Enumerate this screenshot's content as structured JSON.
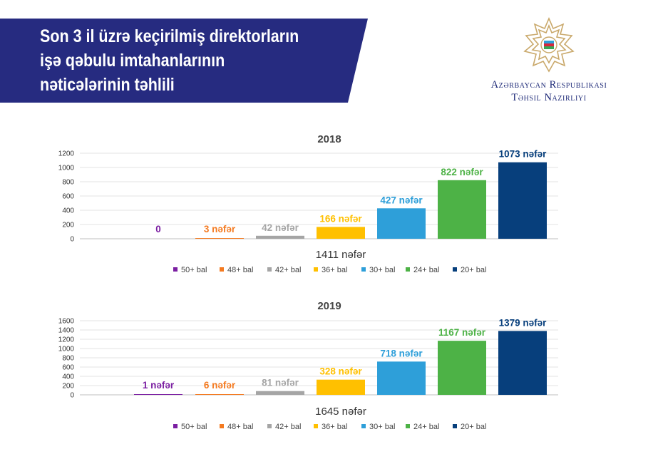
{
  "header": {
    "title_lines": [
      "Son 3 il üzrə keçirilmiş direktorların",
      "işə qəbulu imtahanlarının",
      "nəticələrinin təhlili"
    ],
    "ministry_lines": [
      "Azərbaycan Respublikası",
      "Təhsil Nazirliyi"
    ],
    "banner_color": "#262b80"
  },
  "legend": [
    "50+ bal",
    "48+ bal",
    "42+ bal",
    "36+ bal",
    "30+ bal",
    "24+ bal",
    "20+ bal"
  ],
  "series_colors": [
    "#7b1fa2",
    "#f47a20",
    "#a5a5a5",
    "#ffc000",
    "#2e9fd9",
    "#4db246",
    "#073f7c"
  ],
  "chart_data": [
    {
      "type": "bar",
      "title": "2018",
      "categories": [
        "50+ bal",
        "48+ bal",
        "42+ bal",
        "36+ bal",
        "30+ bal",
        "24+ bal",
        "20+ bal"
      ],
      "values": [
        0,
        3,
        42,
        166,
        427,
        822,
        1073
      ],
      "data_labels": [
        "0",
        "3 nəfər",
        "42 nəfər",
        "166 nəfər",
        "427 nəfər",
        "822 nəfər",
        "1073 nəfər"
      ],
      "ylim": [
        0,
        1200
      ],
      "yticks": [
        0,
        200,
        400,
        600,
        800,
        1000,
        1200
      ],
      "total_label": "1411 nəfər",
      "grid": true,
      "legend_position": "bottom"
    },
    {
      "type": "bar",
      "title": "2019",
      "categories": [
        "50+ bal",
        "48+ bal",
        "42+ bal",
        "36+ bal",
        "30+ bal",
        "24+ bal",
        "20+ bal"
      ],
      "values": [
        1,
        6,
        81,
        328,
        718,
        1167,
        1379
      ],
      "data_labels": [
        "1 nəfər",
        "6 nəfər",
        "81 nəfər",
        "328 nəfər",
        "718 nəfər",
        "1167 nəfər",
        "1379 nəfər"
      ],
      "ylim": [
        0,
        1600
      ],
      "yticks": [
        0,
        200,
        400,
        600,
        800,
        1000,
        1200,
        1400,
        1600
      ],
      "total_label": "1645 nəfər",
      "grid": true,
      "legend_position": "bottom"
    }
  ]
}
